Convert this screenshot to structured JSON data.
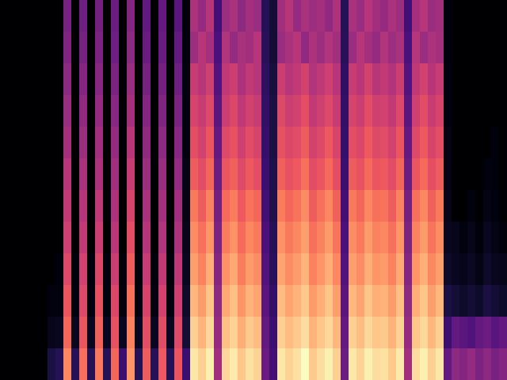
{
  "chart_data": {
    "type": "heatmap",
    "color": "magma",
    "tick_labels": false,
    "cells": [
      [
        0,
        0,
        0,
        0,
        0,
        0,
        0,
        0,
        0.35,
        0,
        0.33,
        0,
        0.34,
        0,
        0.32,
        0,
        0.38,
        0,
        0.3,
        0,
        0.3,
        0,
        0.28,
        0.02,
        0.48,
        0.42,
        0.5,
        0.22,
        0.44,
        0.47,
        0.4,
        0.46,
        0.43,
        0.15,
        0.1,
        0.45,
        0.5,
        0.42,
        0.47,
        0.44,
        0.46,
        0.41,
        0.48,
        0.15,
        0.47,
        0.43,
        0.5,
        0.45,
        0.42,
        0.48,
        0.44,
        0.22,
        0.46,
        0.5,
        0.43,
        0.45,
        0.02,
        0,
        0,
        0,
        0,
        0,
        0,
        0
      ],
      [
        0,
        0,
        0,
        0,
        0,
        0,
        0,
        0,
        0.37,
        0,
        0.35,
        0,
        0.36,
        0,
        0.33,
        0,
        0.4,
        0,
        0.32,
        0,
        0.31,
        0,
        0.3,
        0.02,
        0.44,
        0.5,
        0.46,
        0.24,
        0.49,
        0.42,
        0.47,
        0.45,
        0.5,
        0.16,
        0.1,
        0.43,
        0.47,
        0.5,
        0.41,
        0.48,
        0.44,
        0.49,
        0.45,
        0.16,
        0.43,
        0.5,
        0.46,
        0.42,
        0.49,
        0.44,
        0.47,
        0.24,
        0.5,
        0.43,
        0.48,
        0.46,
        0.02,
        0,
        0,
        0,
        0,
        0,
        0,
        0
      ],
      [
        0,
        0,
        0,
        0,
        0,
        0,
        0,
        0,
        0.4,
        0,
        0.38,
        0,
        0.39,
        0,
        0.36,
        0,
        0.43,
        0,
        0.35,
        0,
        0.34,
        0,
        0.33,
        0.03,
        0.54,
        0.5,
        0.56,
        0.26,
        0.52,
        0.55,
        0.48,
        0.53,
        0.5,
        0.17,
        0.11,
        0.55,
        0.5,
        0.53,
        0.57,
        0.49,
        0.52,
        0.56,
        0.5,
        0.17,
        0.54,
        0.51,
        0.57,
        0.5,
        0.53,
        0.49,
        0.55,
        0.26,
        0.52,
        0.57,
        0.5,
        0.54,
        0.03,
        0,
        0,
        0,
        0,
        0,
        0,
        0
      ],
      [
        0,
        0,
        0,
        0,
        0,
        0,
        0,
        0,
        0.43,
        0,
        0.41,
        0,
        0.42,
        0,
        0.39,
        0,
        0.46,
        0,
        0.38,
        0,
        0.37,
        0,
        0.36,
        0.03,
        0.58,
        0.54,
        0.6,
        0.28,
        0.55,
        0.59,
        0.52,
        0.57,
        0.54,
        0.18,
        0.12,
        0.6,
        0.55,
        0.57,
        0.62,
        0.53,
        0.56,
        0.6,
        0.54,
        0.18,
        0.58,
        0.55,
        0.61,
        0.56,
        0.57,
        0.53,
        0.6,
        0.28,
        0.56,
        0.61,
        0.54,
        0.58,
        0.03,
        0,
        0,
        0,
        0,
        0,
        0,
        0
      ],
      [
        0,
        0,
        0,
        0,
        0,
        0,
        0,
        0,
        0.46,
        0,
        0.44,
        0,
        0.45,
        0,
        0.42,
        0,
        0.5,
        0,
        0.41,
        0,
        0.4,
        0,
        0.39,
        0.03,
        0.62,
        0.57,
        0.64,
        0.3,
        0.6,
        0.63,
        0.56,
        0.61,
        0.58,
        0.19,
        0.12,
        0.63,
        0.59,
        0.61,
        0.66,
        0.57,
        0.6,
        0.65,
        0.58,
        0.19,
        0.62,
        0.59,
        0.65,
        0.6,
        0.61,
        0.57,
        0.64,
        0.3,
        0.6,
        0.65,
        0.58,
        0.62,
        0.04,
        0,
        0,
        0,
        0,
        0,
        0.02,
        0
      ],
      [
        0,
        0,
        0,
        0,
        0,
        0,
        0,
        0,
        0.5,
        0,
        0.47,
        0,
        0.48,
        0,
        0.45,
        0,
        0.54,
        0,
        0.44,
        0,
        0.43,
        0,
        0.42,
        0.04,
        0.66,
        0.61,
        0.68,
        0.32,
        0.64,
        0.67,
        0.6,
        0.65,
        0.62,
        0.2,
        0.13,
        0.67,
        0.63,
        0.65,
        0.7,
        0.61,
        0.64,
        0.69,
        0.62,
        0.2,
        0.66,
        0.63,
        0.69,
        0.64,
        0.65,
        0.61,
        0.68,
        0.32,
        0.64,
        0.69,
        0.62,
        0.66,
        0.04,
        0,
        0,
        0,
        0,
        0.03,
        0.02,
        0
      ],
      [
        0,
        0,
        0,
        0,
        0,
        0,
        0,
        0,
        0.53,
        0,
        0.5,
        0,
        0.52,
        0,
        0.48,
        0,
        0.58,
        0,
        0.47,
        0,
        0.46,
        0,
        0.45,
        0.04,
        0.72,
        0.66,
        0.74,
        0.34,
        0.69,
        0.73,
        0.65,
        0.71,
        0.68,
        0.22,
        0.14,
        0.73,
        0.68,
        0.71,
        0.76,
        0.66,
        0.7,
        0.75,
        0.67,
        0.22,
        0.72,
        0.68,
        0.75,
        0.7,
        0.71,
        0.66,
        0.74,
        0.34,
        0.7,
        0.75,
        0.67,
        0.72,
        0.05,
        0,
        0,
        0.03,
        0,
        0.04,
        0.03,
        0
      ],
      [
        0,
        0,
        0,
        0,
        0,
        0,
        0,
        0,
        0.56,
        0,
        0.53,
        0,
        0.55,
        0,
        0.51,
        0,
        0.62,
        0,
        0.5,
        0,
        0.49,
        0,
        0.48,
        0.05,
        0.76,
        0.7,
        0.78,
        0.36,
        0.73,
        0.77,
        0.69,
        0.75,
        0.72,
        0.24,
        0.15,
        0.77,
        0.72,
        0.75,
        0.8,
        0.7,
        0.74,
        0.79,
        0.71,
        0.24,
        0.76,
        0.72,
        0.79,
        0.74,
        0.75,
        0.7,
        0.78,
        0.36,
        0.74,
        0.79,
        0.71,
        0.76,
        0.06,
        0.05,
        0.03,
        0.05,
        0.02,
        0.06,
        0.04,
        0.02
      ],
      [
        0,
        0,
        0,
        0,
        0,
        0,
        0,
        0.02,
        0.6,
        0.02,
        0.57,
        0.02,
        0.59,
        0.02,
        0.55,
        0.02,
        0.66,
        0.02,
        0.54,
        0.02,
        0.53,
        0.02,
        0.52,
        0.06,
        0.8,
        0.74,
        0.83,
        0.38,
        0.77,
        0.82,
        0.73,
        0.79,
        0.76,
        0.26,
        0.16,
        0.81,
        0.76,
        0.79,
        0.84,
        0.74,
        0.78,
        0.83,
        0.75,
        0.26,
        0.8,
        0.76,
        0.83,
        0.78,
        0.79,
        0.74,
        0.82,
        0.38,
        0.78,
        0.83,
        0.75,
        0.8,
        0.08,
        0.06,
        0.05,
        0.07,
        0.04,
        0.08,
        0.06,
        0.05
      ],
      [
        0,
        0,
        0,
        0,
        0,
        0,
        0.03,
        0.03,
        0.64,
        0.03,
        0.6,
        0.03,
        0.63,
        0.03,
        0.59,
        0.03,
        0.7,
        0.03,
        0.58,
        0.03,
        0.57,
        0.03,
        0.56,
        0.08,
        0.85,
        0.79,
        0.88,
        0.4,
        0.82,
        0.87,
        0.78,
        0.84,
        0.81,
        0.28,
        0.18,
        0.86,
        0.81,
        0.84,
        0.89,
        0.79,
        0.83,
        0.88,
        0.8,
        0.28,
        0.85,
        0.81,
        0.88,
        0.83,
        0.84,
        0.79,
        0.87,
        0.4,
        0.83,
        0.88,
        0.8,
        0.85,
        0.12,
        0.1,
        0.08,
        0.1,
        0.08,
        0.12,
        0.1,
        0.08
      ],
      [
        0,
        0,
        0,
        0,
        0,
        0,
        0.05,
        0.06,
        0.68,
        0.06,
        0.64,
        0.06,
        0.67,
        0.06,
        0.63,
        0.06,
        0.74,
        0.06,
        0.62,
        0.06,
        0.61,
        0.06,
        0.6,
        0.1,
        0.9,
        0.84,
        0.92,
        0.42,
        0.87,
        0.91,
        0.83,
        0.89,
        0.86,
        0.3,
        0.2,
        0.9,
        0.86,
        0.89,
        0.93,
        0.84,
        0.88,
        0.92,
        0.85,
        0.3,
        0.9,
        0.86,
        0.92,
        0.88,
        0.89,
        0.84,
        0.91,
        0.42,
        0.88,
        0.92,
        0.85,
        0.9,
        0.2,
        0.3,
        0.28,
        0.25,
        0.3,
        0.32,
        0.27,
        0.3
      ],
      [
        0,
        0,
        0,
        0,
        0,
        0,
        0.12,
        0.15,
        0.75,
        0.15,
        0.7,
        0.15,
        0.72,
        0.15,
        0.68,
        0.2,
        0.78,
        0.15,
        0.66,
        0.15,
        0.65,
        0.15,
        0.64,
        0.2,
        0.95,
        0.9,
        0.97,
        0.45,
        0.92,
        0.96,
        0.88,
        0.94,
        0.91,
        0.32,
        0.22,
        0.95,
        0.91,
        0.94,
        1.0,
        0.89,
        0.93,
        0.97,
        0.9,
        0.32,
        0.95,
        0.91,
        0.97,
        0.93,
        0.94,
        0.89,
        0.96,
        0.45,
        0.93,
        0.97,
        0.9,
        0.95,
        0.3,
        0.4,
        0.38,
        0.42,
        0.36,
        0.4,
        0.35,
        0.38
      ]
    ]
  }
}
